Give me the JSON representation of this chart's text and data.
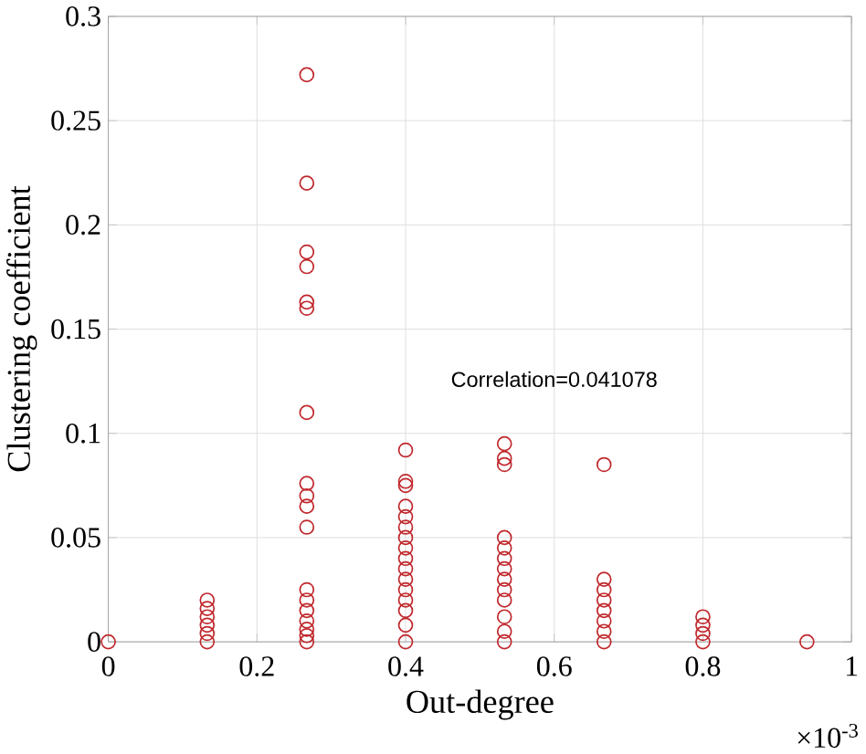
{
  "chart_data": {
    "type": "scatter",
    "xlabel": "Out-degree",
    "ylabel": "Clustering coefficient",
    "annotations": [
      "×10$^{-3}$",
      "Correlation=0.041078"
    ],
    "x": [
      0,
      0.133,
      0.133,
      0.133,
      0.133,
      0.133,
      0.133,
      0.267,
      0.267,
      0.267,
      0.267,
      0.267,
      0.267,
      0.267,
      0.267,
      0.267,
      0.267,
      0.267,
      0.267,
      0.267,
      0.267,
      0.267,
      0.267,
      0.267,
      0.267,
      0.4,
      0.4,
      0.4,
      0.4,
      0.4,
      0.4,
      0.4,
      0.4,
      0.4,
      0.4,
      0.4,
      0.4,
      0.4,
      0.4,
      0.4,
      0.4,
      0.533,
      0.533,
      0.533,
      0.533,
      0.533,
      0.533,
      0.533,
      0.533,
      0.533,
      0.533,
      0.533,
      0.533,
      0.533,
      0.667,
      0.667,
      0.667,
      0.667,
      0.667,
      0.667,
      0.667,
      0.667,
      0.8,
      0.8,
      0.8,
      0.8,
      0.94
    ],
    "values": [
      0,
      0.02,
      0.016,
      0.012,
      0.008,
      0.004,
      0,
      0.272,
      0.22,
      0.187,
      0.18,
      0.163,
      0.16,
      0.11,
      0.076,
      0.07,
      0.065,
      0.055,
      0.025,
      0.02,
      0.015,
      0.01,
      0.006,
      0.003,
      0,
      0.092,
      0.077,
      0.075,
      0.065,
      0.06,
      0.055,
      0.05,
      0.045,
      0.04,
      0.035,
      0.03,
      0.025,
      0.02,
      0.015,
      0.008,
      0,
      0.095,
      0.088,
      0.085,
      0.05,
      0.045,
      0.04,
      0.035,
      0.03,
      0.025,
      0.02,
      0.012,
      0.005,
      0,
      0.085,
      0.03,
      0.025,
      0.02,
      0.015,
      0.01,
      0.005,
      0,
      0.012,
      0.008,
      0.004,
      0,
      0
    ],
    "color": "#c0282d",
    "marker": "circle",
    "grid": true,
    "xlim": [
      0,
      1
    ],
    "xticks": [
      0,
      0.2,
      0.4,
      0.6,
      0.8,
      1
    ],
    "ylim": [
      0,
      0.3
    ],
    "yticks": [
      0,
      0.05,
      0.1,
      0.15,
      0.2,
      0.25,
      0.3
    ]
  }
}
